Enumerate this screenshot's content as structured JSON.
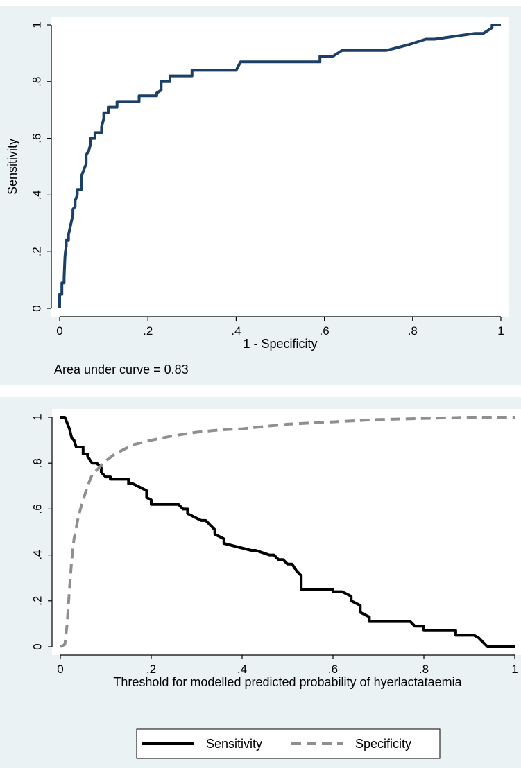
{
  "chart_data": [
    {
      "type": "line",
      "xlabel": "1 - Specificity",
      "ylabel": "Sensitivity",
      "xlim": [
        0,
        1
      ],
      "ylim": [
        0,
        1
      ],
      "xticks": [
        "0",
        ".2",
        ".4",
        ".6",
        ".8",
        "1"
      ],
      "yticks": [
        "0",
        ".2",
        ".4",
        ".6",
        ".8",
        "1"
      ],
      "grid": false,
      "annotation": "Area under curve = 0.83",
      "line_color": "#1b3f66",
      "series": [
        {
          "x": [
            0,
            0,
            0.005,
            0.005,
            0.01,
            0.01,
            0.012,
            0.013,
            0.015,
            0.015,
            0.02,
            0.02,
            0.03,
            0.03,
            0.035,
            0.035,
            0.04,
            0.04,
            0.05,
            0.05,
            0.06,
            0.06,
            0.063,
            0.065,
            0.07,
            0.07,
            0.08,
            0.08,
            0.095,
            0.095,
            0.1,
            0.1,
            0.11,
            0.11,
            0.13,
            0.13,
            0.18,
            0.18,
            0.22,
            0.22,
            0.23,
            0.23,
            0.25,
            0.25,
            0.3,
            0.3,
            0.4,
            0.41,
            0.59,
            0.59,
            0.62,
            0.64,
            0.74,
            0.79,
            0.83,
            0.85,
            0.94,
            0.96,
            0.98,
            0.98,
            1.0
          ],
          "y": [
            0,
            0.05,
            0.05,
            0.09,
            0.09,
            0.11,
            0.18,
            0.2,
            0.22,
            0.24,
            0.24,
            0.26,
            0.33,
            0.35,
            0.36,
            0.38,
            0.4,
            0.42,
            0.42,
            0.47,
            0.51,
            0.54,
            0.55,
            0.55,
            0.58,
            0.6,
            0.6,
            0.62,
            0.62,
            0.64,
            0.67,
            0.69,
            0.69,
            0.71,
            0.71,
            0.73,
            0.73,
            0.75,
            0.75,
            0.76,
            0.77,
            0.8,
            0.8,
            0.82,
            0.82,
            0.84,
            0.84,
            0.87,
            0.87,
            0.89,
            0.89,
            0.91,
            0.91,
            0.93,
            0.95,
            0.95,
            0.97,
            0.97,
            0.99,
            1.0,
            1.0
          ]
        }
      ]
    },
    {
      "type": "line",
      "xlabel": "Threshold for modelled predicted probability of hyerlactataemia",
      "ylabel": "",
      "xlim": [
        0,
        1
      ],
      "ylim": [
        0,
        1
      ],
      "xticks": [
        "0",
        ".2",
        ".4",
        ".6",
        ".8",
        "1"
      ],
      "yticks": [
        "0",
        ".2",
        ".4",
        ".6",
        ".8",
        "1"
      ],
      "grid": false,
      "legend_position": "bottom",
      "series": [
        {
          "name": "Sensitivity",
          "color": "#000000",
          "dash": "solid",
          "x": [
            0,
            0.01,
            0.02,
            0.025,
            0.03,
            0.035,
            0.05,
            0.05,
            0.06,
            0.06,
            0.07,
            0.08,
            0.09,
            0.09,
            0.1,
            0.11,
            0.11,
            0.15,
            0.15,
            0.16,
            0.17,
            0.19,
            0.19,
            0.2,
            0.2,
            0.26,
            0.27,
            0.28,
            0.28,
            0.3,
            0.31,
            0.32,
            0.33,
            0.34,
            0.34,
            0.36,
            0.36,
            0.42,
            0.43,
            0.46,
            0.47,
            0.48,
            0.49,
            0.5,
            0.51,
            0.52,
            0.53,
            0.53,
            0.6,
            0.6,
            0.62,
            0.64,
            0.64,
            0.66,
            0.66,
            0.68,
            0.68,
            0.7,
            0.7,
            0.77,
            0.78,
            0.8,
            0.8,
            0.87,
            0.87,
            0.91,
            0.92,
            0.93,
            0.94,
            0.96,
            1.0
          ],
          "y": [
            1,
            1,
            0.95,
            0.91,
            0.9,
            0.87,
            0.87,
            0.84,
            0.84,
            0.83,
            0.8,
            0.8,
            0.78,
            0.76,
            0.74,
            0.74,
            0.73,
            0.73,
            0.71,
            0.71,
            0.7,
            0.68,
            0.65,
            0.64,
            0.62,
            0.62,
            0.6,
            0.6,
            0.58,
            0.56,
            0.55,
            0.55,
            0.53,
            0.51,
            0.49,
            0.47,
            0.45,
            0.42,
            0.42,
            0.4,
            0.4,
            0.38,
            0.38,
            0.36,
            0.36,
            0.33,
            0.31,
            0.25,
            0.25,
            0.24,
            0.24,
            0.22,
            0.2,
            0.18,
            0.15,
            0.13,
            0.11,
            0.11,
            0.11,
            0.11,
            0.09,
            0.09,
            0.07,
            0.07,
            0.05,
            0.05,
            0.04,
            0.02,
            0.0,
            0.0,
            0.0
          ]
        },
        {
          "name": "Specificity",
          "color": "#8f8f8f",
          "dash": "dashed",
          "x": [
            0,
            0.01,
            0.015,
            0.02,
            0.025,
            0.03,
            0.04,
            0.05,
            0.06,
            0.07,
            0.08,
            0.1,
            0.12,
            0.14,
            0.16,
            0.2,
            0.25,
            0.3,
            0.35,
            0.4,
            0.45,
            0.5,
            0.55,
            0.6,
            0.7,
            0.8,
            0.9,
            1.0
          ],
          "y": [
            0,
            0.01,
            0.1,
            0.25,
            0.38,
            0.47,
            0.57,
            0.64,
            0.7,
            0.75,
            0.77,
            0.81,
            0.84,
            0.86,
            0.88,
            0.9,
            0.92,
            0.935,
            0.945,
            0.95,
            0.96,
            0.97,
            0.975,
            0.98,
            0.99,
            0.995,
            1.0,
            1.0
          ]
        }
      ]
    }
  ]
}
